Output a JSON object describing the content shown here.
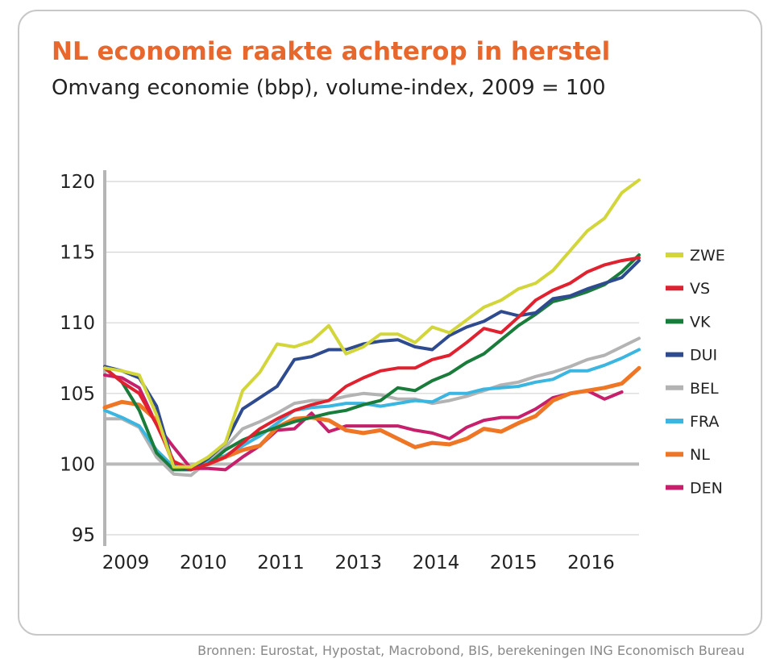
{
  "title": "NL economie raakte achterop in herstel",
  "subtitle": "Omvang economie (bbp), volume-index, 2009 = 100",
  "source": "Bronnen: Eurostat, Hypostat, Macrobond, BIS, berekeningen ING Economisch Bureau",
  "chart_data": {
    "type": "line",
    "title": "NL economie raakte achterop in herstel",
    "subtitle": "Omvang economie (bbp), volume-index, 2009 = 100",
    "xlabel": "",
    "ylabel": "",
    "ylim": [
      95,
      120
    ],
    "yticks": [
      95,
      100,
      105,
      110,
      115,
      120
    ],
    "xlim": [
      0,
      31
    ],
    "xticks": [
      {
        "pos": 0,
        "label": "2009"
      },
      {
        "pos": 4.5,
        "label": "2010"
      },
      {
        "pos": 9,
        "label": "2011"
      },
      {
        "pos": 13.5,
        "label": "2013"
      },
      {
        "pos": 18,
        "label": "2014"
      },
      {
        "pos": 22.5,
        "label": "2015"
      },
      {
        "pos": 27,
        "label": "2016"
      }
    ],
    "grid": "horizontal",
    "legend_position": "right",
    "series": [
      {
        "name": "ZWE",
        "color": "#d2d63a",
        "x": [
          0,
          1,
          2,
          3,
          4,
          5,
          6,
          7,
          8,
          9,
          10,
          11,
          12,
          13,
          14,
          15,
          16,
          17,
          18,
          19,
          20,
          21,
          22,
          23,
          24,
          25,
          26,
          27,
          28,
          29,
          30,
          31
        ],
        "values": [
          106.8,
          106.6,
          106.3,
          103.5,
          99.8,
          99.8,
          100.5,
          101.5,
          105.2,
          106.5,
          108.5,
          108.3,
          108.7,
          109.8,
          107.8,
          108.3,
          109.2,
          109.2,
          108.6,
          109.7,
          109.3,
          110.2,
          111.1,
          111.6,
          112.4,
          112.8,
          113.7,
          115.1,
          116.5,
          117.4,
          119.2,
          120.1
        ]
      },
      {
        "name": "VS",
        "color": "#e0212f",
        "x": [
          0,
          1,
          2,
          3,
          4,
          5,
          6,
          7,
          8,
          9,
          10,
          11,
          12,
          13,
          14,
          15,
          16,
          17,
          18,
          19,
          20,
          21,
          22,
          23,
          24,
          25,
          26,
          27,
          28,
          29,
          30,
          31
        ],
        "values": [
          106.8,
          105.8,
          105.0,
          102.8,
          100.2,
          99.6,
          100.0,
          100.5,
          101.5,
          102.5,
          103.2,
          103.8,
          104.2,
          104.5,
          105.5,
          106.1,
          106.6,
          106.8,
          106.8,
          107.4,
          107.7,
          108.6,
          109.6,
          109.3,
          110.4,
          111.6,
          112.3,
          112.8,
          113.6,
          114.1,
          114.4,
          114.6
        ]
      },
      {
        "name": "VK",
        "color": "#1a7c3a",
        "x": [
          0,
          1,
          2,
          3,
          4,
          5,
          6,
          7,
          8,
          9,
          10,
          11,
          12,
          13,
          14,
          15,
          16,
          17,
          18,
          19,
          20,
          21,
          22,
          23,
          24,
          25,
          26,
          27,
          28,
          29,
          30,
          31
        ],
        "values": [
          106.8,
          105.8,
          103.8,
          100.8,
          99.6,
          99.6,
          100.0,
          101.0,
          101.7,
          102.2,
          102.6,
          103.0,
          103.3,
          103.6,
          103.8,
          104.2,
          104.5,
          105.4,
          105.2,
          105.9,
          106.4,
          107.2,
          107.8,
          108.8,
          109.8,
          110.6,
          111.5,
          111.8,
          112.2,
          112.7,
          113.6,
          114.8
        ]
      },
      {
        "name": "DUI",
        "color": "#2f4b8f",
        "x": [
          0,
          1,
          2,
          3,
          4,
          5,
          6,
          7,
          8,
          9,
          10,
          11,
          12,
          13,
          14,
          15,
          16,
          17,
          18,
          19,
          20,
          21,
          22,
          23,
          24,
          25,
          26,
          27,
          28,
          29,
          30,
          31
        ],
        "values": [
          106.9,
          106.6,
          106.1,
          104.1,
          99.9,
          99.6,
          100.4,
          101.5,
          103.9,
          104.7,
          105.5,
          107.4,
          107.6,
          108.1,
          108.1,
          108.5,
          108.7,
          108.8,
          108.3,
          108.1,
          109.1,
          109.7,
          110.1,
          110.8,
          110.5,
          110.7,
          111.7,
          111.9,
          112.4,
          112.8,
          113.2,
          114.4
        ]
      },
      {
        "name": "BEL",
        "color": "#b3b3b3",
        "x": [
          0,
          1,
          2,
          3,
          4,
          5,
          6,
          7,
          8,
          9,
          10,
          11,
          12,
          13,
          14,
          15,
          16,
          17,
          18,
          19,
          20,
          21,
          22,
          23,
          24,
          25,
          26,
          27,
          28,
          29,
          30,
          31
        ],
        "values": [
          103.2,
          103.2,
          102.6,
          100.5,
          99.3,
          99.2,
          100.2,
          101.2,
          102.5,
          103.0,
          103.6,
          104.3,
          104.5,
          104.5,
          104.8,
          105.0,
          104.9,
          104.6,
          104.6,
          104.3,
          104.5,
          104.8,
          105.2,
          105.6,
          105.8,
          106.2,
          106.5,
          106.9,
          107.4,
          107.7,
          108.3,
          108.9
        ]
      },
      {
        "name": "FRA",
        "color": "#3bb6e0",
        "x": [
          0,
          1,
          2,
          3,
          4,
          5,
          6,
          7,
          8,
          9,
          10,
          11,
          12,
          13,
          14,
          15,
          16,
          17,
          18,
          19,
          20,
          21,
          22,
          23,
          24,
          25,
          26,
          27,
          28,
          29,
          30,
          31
        ],
        "values": [
          103.8,
          103.3,
          102.7,
          101.0,
          99.8,
          99.8,
          100.2,
          100.6,
          101.3,
          102.0,
          102.9,
          103.8,
          104.0,
          104.1,
          104.3,
          104.3,
          104.1,
          104.3,
          104.5,
          104.4,
          105.0,
          105.0,
          105.3,
          105.4,
          105.5,
          105.8,
          106.0,
          106.6,
          106.6,
          107.0,
          107.5,
          108.1
        ]
      },
      {
        "name": "NL",
        "color": "#ee7624",
        "x": [
          0,
          1,
          2,
          3,
          4,
          5,
          6,
          7,
          8,
          9,
          10,
          11,
          12,
          13,
          14,
          15,
          16,
          17,
          18,
          19,
          20,
          21,
          22,
          23,
          24,
          25,
          26,
          27,
          28,
          29,
          30,
          31
        ],
        "values": [
          104.0,
          104.4,
          104.2,
          103.1,
          100.0,
          99.7,
          100.0,
          100.5,
          101.0,
          101.3,
          102.6,
          103.2,
          103.3,
          103.1,
          102.4,
          102.2,
          102.4,
          101.8,
          101.2,
          101.5,
          101.4,
          101.8,
          102.5,
          102.3,
          102.9,
          103.4,
          104.5,
          105.0,
          105.2,
          105.4,
          105.7,
          106.8
        ]
      },
      {
        "name": "DEN",
        "color": "#c61f6b",
        "x": [
          0,
          1,
          2,
          3,
          4,
          5,
          6,
          7,
          8,
          9,
          10,
          11,
          12,
          13,
          14,
          15,
          16,
          17,
          18,
          19,
          20,
          21,
          22,
          23,
          24,
          25,
          26,
          27,
          28,
          29,
          30
        ],
        "values": [
          106.3,
          106.1,
          105.4,
          102.8,
          101.2,
          99.7,
          99.7,
          99.6,
          100.5,
          101.3,
          102.4,
          102.5,
          103.6,
          102.3,
          102.7,
          102.7,
          102.7,
          102.7,
          102.4,
          102.2,
          101.8,
          102.6,
          103.1,
          103.3,
          103.3,
          103.9,
          104.7,
          105.0,
          105.2,
          104.6,
          105.1
        ]
      }
    ]
  }
}
